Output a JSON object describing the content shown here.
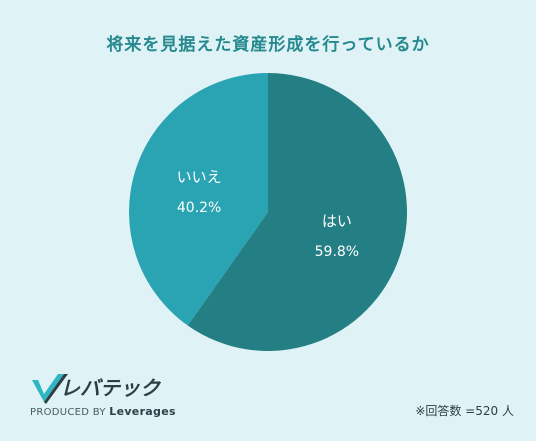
{
  "chart_data": {
    "type": "pie",
    "title": "将来を見据えた資産形成を行っているか",
    "slices": [
      {
        "label": "はい",
        "value": 59.8,
        "display": "59.8%",
        "color": "#237f83"
      },
      {
        "label": "いいえ",
        "value": 40.2,
        "display": "40.2%",
        "color": "#2aa3b3"
      }
    ],
    "start": "top",
    "direction": "clockwise"
  },
  "brand": {
    "name": "レバテック",
    "sub_prefix": "PRODUCED BY",
    "sub_name": "Leverages",
    "mark_colors": [
      "#2fb6c2",
      "#2f3d45"
    ]
  },
  "note": "※回答数 =520 人"
}
